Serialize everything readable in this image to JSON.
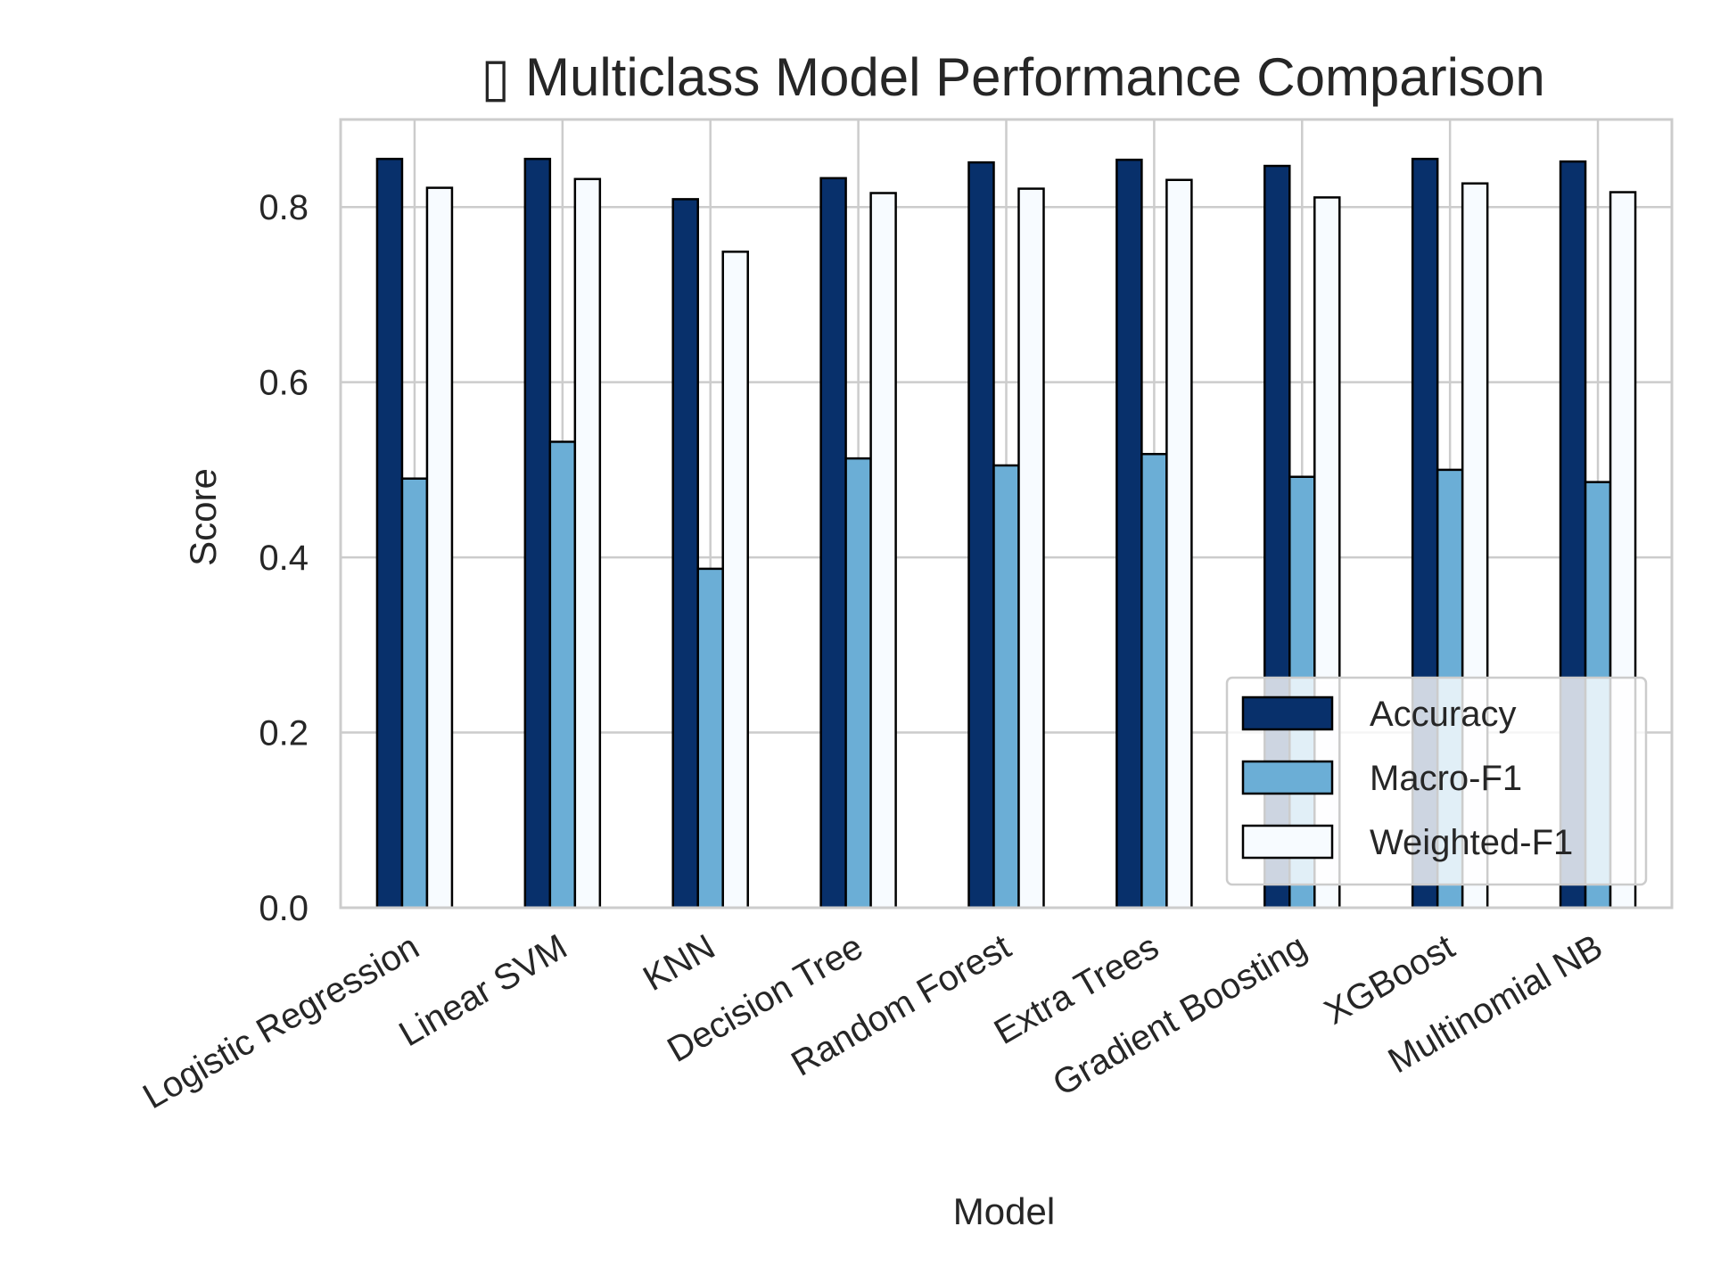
{
  "chart_data": {
    "type": "bar",
    "title": "▯ Multiclass Model Performance Comparison",
    "xlabel": "Model",
    "ylabel": "Score",
    "ylim": [
      0,
      0.9
    ],
    "yticks": [
      "0.0",
      "0.2",
      "0.4",
      "0.6",
      "0.8"
    ],
    "grid": true,
    "legend_position": "lower-right",
    "categories": [
      "Logistic Regression",
      "Linear SVM",
      "KNN",
      "Decision Tree",
      "Random Forest",
      "Extra Trees",
      "Gradient Boosting",
      "XGBoost",
      "Multinomial NB"
    ],
    "series": [
      {
        "name": "Accuracy",
        "color": "#08306b",
        "values": [
          0.855,
          0.855,
          0.809,
          0.833,
          0.851,
          0.854,
          0.847,
          0.855,
          0.852
        ]
      },
      {
        "name": "Macro-F1",
        "color": "#6baed6",
        "values": [
          0.49,
          0.532,
          0.387,
          0.513,
          0.505,
          0.518,
          0.492,
          0.5,
          0.486
        ]
      },
      {
        "name": "Weighted-F1",
        "color": "#f7fbff",
        "values": [
          0.822,
          0.832,
          0.749,
          0.816,
          0.821,
          0.831,
          0.811,
          0.827,
          0.817
        ]
      }
    ]
  }
}
